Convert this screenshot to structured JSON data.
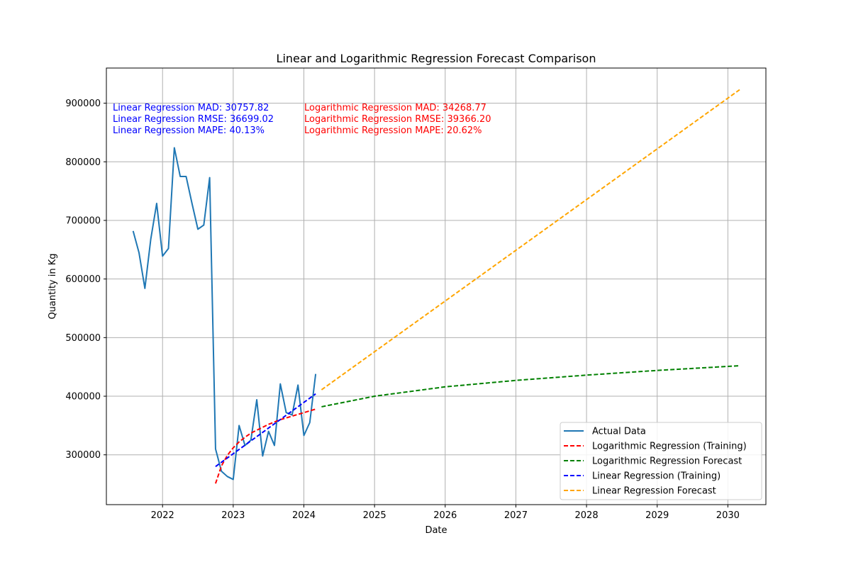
{
  "chart_data": {
    "type": "line",
    "title": "Linear and Logarithmic Regression Forecast Comparison",
    "xlabel": "Date",
    "ylabel": "Quantity in Kg",
    "xlim": [
      "2021-03-15",
      "2030-07-15"
    ],
    "ylim": [
      215000,
      960000
    ],
    "x_ticks": [
      "2022",
      "2023",
      "2024",
      "2025",
      "2026",
      "2027",
      "2028",
      "2029",
      "2030"
    ],
    "y_ticks": [
      300000,
      400000,
      500000,
      600000,
      700000,
      800000,
      900000
    ],
    "y_tick_labels": [
      "300000",
      "400000",
      "500000",
      "600000",
      "700000",
      "800000",
      "900000"
    ],
    "grid": true,
    "legend_position": "lower-right",
    "series": [
      {
        "name": "Actual Data",
        "color": "#1f77b4",
        "style": "solid",
        "x": [
          "2021-08-01",
          "2021-09-01",
          "2021-10-01",
          "2021-11-01",
          "2021-12-01",
          "2022-01-01",
          "2022-02-01",
          "2022-03-01",
          "2022-04-01",
          "2022-05-01",
          "2022-06-01",
          "2022-07-01",
          "2022-08-01",
          "2022-09-01",
          "2022-10-01",
          "2022-11-01",
          "2022-12-01",
          "2023-01-01",
          "2023-02-01",
          "2023-03-01",
          "2023-04-01",
          "2023-05-01",
          "2023-06-01",
          "2023-07-01",
          "2023-08-01",
          "2023-09-01",
          "2023-10-01",
          "2023-11-01",
          "2023-12-01",
          "2024-01-01",
          "2024-02-01",
          "2024-03-01"
        ],
        "y": [
          682000,
          645000,
          584000,
          668000,
          729000,
          639000,
          652000,
          824000,
          775000,
          775000,
          729000,
          685000,
          692000,
          773000,
          310000,
          272000,
          263000,
          258000,
          350000,
          316000,
          325000,
          394000,
          298000,
          340000,
          316000,
          421000,
          372000,
          368000,
          419000,
          333000,
          355000,
          438000
        ]
      },
      {
        "name": "Logarithmic Regression (Training)",
        "color": "#ff0000",
        "style": "dashed",
        "x": [
          "2022-10-01",
          "2022-11-01",
          "2022-12-01",
          "2023-01-01",
          "2023-02-01",
          "2023-03-01",
          "2023-04-01",
          "2023-05-01",
          "2023-06-01",
          "2023-07-01",
          "2023-08-01",
          "2023-09-01",
          "2023-10-01",
          "2023-11-01",
          "2023-12-01",
          "2024-01-01",
          "2024-02-01",
          "2024-03-01"
        ],
        "y": [
          251000,
          281000,
          299000,
          312000,
          322000,
          330000,
          337000,
          342000,
          347000,
          352000,
          356000,
          360000,
          363000,
          366000,
          369000,
          372000,
          375000,
          378000
        ]
      },
      {
        "name": "Logarithmic Regression Forecast",
        "color": "#008000",
        "style": "dashed",
        "x": [
          "2024-04-01",
          "2025-01-01",
          "2026-01-01",
          "2027-01-01",
          "2028-01-01",
          "2029-01-01",
          "2030-03-01"
        ],
        "y": [
          382000,
          400000,
          416000,
          427000,
          436000,
          444000,
          452000
        ]
      },
      {
        "name": "Linear Regression (Training)",
        "color": "#0000ff",
        "style": "dashed",
        "x": [
          "2022-10-01",
          "2024-03-01"
        ],
        "y": [
          280000,
          404000
        ]
      },
      {
        "name": "Linear Regression Forecast",
        "color": "#ffa500",
        "style": "dashed",
        "x": [
          "2024-04-01",
          "2030-03-01"
        ],
        "y": [
          411000,
          923000
        ]
      }
    ],
    "annotations": {
      "linear": {
        "color": "#0000ff",
        "lines": [
          "Linear Regression MAD: 30757.82",
          "Linear Regression RMSE: 36699.02",
          "Linear Regression MAPE: 40.13%"
        ]
      },
      "logarithmic": {
        "color": "#ff0000",
        "lines": [
          "Logarithmic Regression MAD: 34268.77",
          "Logarithmic Regression RMSE: 39366.20",
          "Logarithmic Regression MAPE: 20.62%"
        ]
      }
    }
  }
}
